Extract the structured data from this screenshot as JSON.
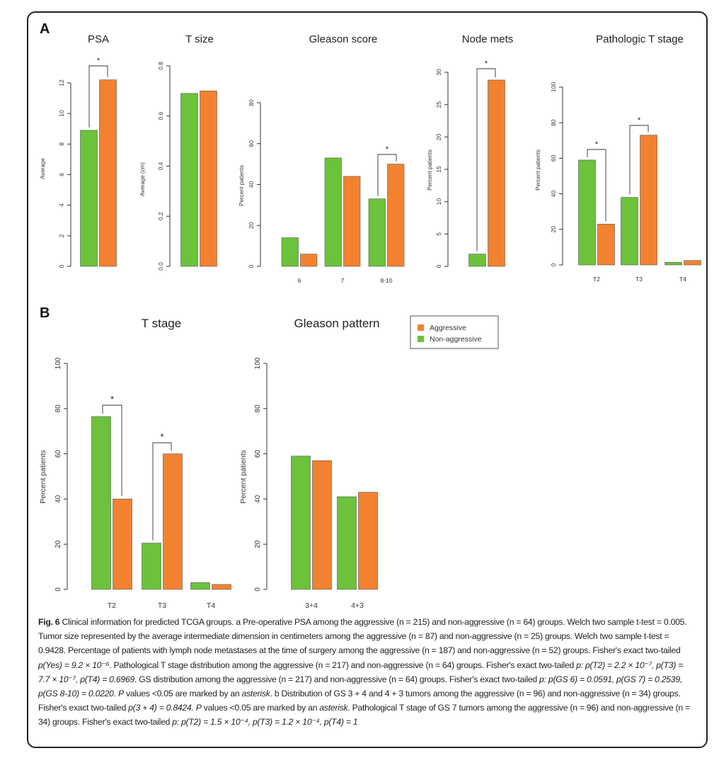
{
  "colors": {
    "aggressive": "#F28230",
    "non_aggressive": "#6CC23A",
    "axis": "#333333"
  },
  "panel_labels": [
    "A",
    "B"
  ],
  "chart_data": [
    {
      "id": "psa",
      "type": "bar",
      "title": "PSA",
      "xlabel": "",
      "ylabel": "Average",
      "ylim": [
        0,
        12
      ],
      "yticks": [
        0,
        2,
        4,
        6,
        8,
        10,
        12
      ],
      "categories": [
        ""
      ],
      "series": [
        {
          "name": "Non-aggressive",
          "values": [
            8.9
          ]
        },
        {
          "name": "Aggressive",
          "values": [
            12.2
          ]
        }
      ],
      "significance": [
        {
          "category": "",
          "label": "*"
        }
      ]
    },
    {
      "id": "tsize",
      "type": "bar",
      "title": "T size",
      "xlabel": "",
      "ylabel": "Average (cm)",
      "ylim": [
        0,
        0.8
      ],
      "yticks": [
        "0.0",
        "0.2",
        "0.4",
        "0.6",
        "0.8"
      ],
      "categories": [
        ""
      ],
      "series": [
        {
          "name": "Non-aggressive",
          "values": [
            0.69
          ]
        },
        {
          "name": "Aggressive",
          "values": [
            0.7
          ]
        }
      ],
      "significance": []
    },
    {
      "id": "gleason",
      "type": "bar",
      "title": "Gleason score",
      "xlabel": "",
      "ylabel": "Percent patients",
      "ylim": [
        0,
        80
      ],
      "yticks": [
        0,
        20,
        40,
        60,
        80
      ],
      "categories": [
        "6",
        "7",
        "8-10"
      ],
      "series": [
        {
          "name": "Non-aggressive",
          "values": [
            14,
            53,
            33
          ]
        },
        {
          "name": "Aggressive",
          "values": [
            6,
            44,
            50
          ]
        }
      ],
      "significance": [
        {
          "category": "8-10",
          "label": "*"
        }
      ]
    },
    {
      "id": "nodemets",
      "type": "bar",
      "title": "Node mets",
      "xlabel": "",
      "ylabel": "Percent patients",
      "ylim": [
        0,
        30
      ],
      "yticks": [
        0,
        5,
        10,
        15,
        20,
        25,
        30
      ],
      "categories": [
        ""
      ],
      "series": [
        {
          "name": "Non-aggressive",
          "values": [
            1.9
          ]
        },
        {
          "name": "Aggressive",
          "values": [
            28.8
          ]
        }
      ],
      "significance": [
        {
          "category": "",
          "label": "*"
        }
      ]
    },
    {
      "id": "pathT",
      "type": "bar",
      "title": "Pathologic T stage",
      "xlabel": "",
      "ylabel": "Percent patients",
      "ylim": [
        0,
        100
      ],
      "yticks": [
        0,
        20,
        40,
        60,
        80,
        100
      ],
      "categories": [
        "T2",
        "T3",
        "T4"
      ],
      "series": [
        {
          "name": "Non-aggressive",
          "values": [
            59,
            38,
            1.5
          ]
        },
        {
          "name": "Aggressive",
          "values": [
            23,
            73,
            2.5
          ]
        }
      ],
      "significance": [
        {
          "category": "T2",
          "label": "*"
        },
        {
          "category": "T3",
          "label": "*"
        }
      ]
    },
    {
      "id": "tstageB",
      "type": "bar",
      "title": "T stage",
      "xlabel": "",
      "ylabel": "Percent patients",
      "ylim": [
        0,
        100
      ],
      "yticks": [
        0,
        20,
        40,
        60,
        80,
        100
      ],
      "categories": [
        "T2",
        "T3",
        "T4"
      ],
      "series": [
        {
          "name": "Non-aggressive",
          "values": [
            76.5,
            20.5,
            3
          ]
        },
        {
          "name": "Aggressive",
          "values": [
            40,
            60,
            2.2
          ]
        }
      ],
      "significance": [
        {
          "category": "T2",
          "label": "*"
        },
        {
          "category": "T3",
          "label": "*"
        }
      ]
    },
    {
      "id": "gpatternB",
      "type": "bar",
      "title": "Gleason pattern",
      "xlabel": "",
      "ylabel": "Percent patients",
      "ylim": [
        0,
        100
      ],
      "yticks": [
        0,
        20,
        40,
        60,
        80,
        100
      ],
      "categories": [
        "3+4",
        "4+3"
      ],
      "series": [
        {
          "name": "Non-aggressive",
          "values": [
            59,
            41
          ]
        },
        {
          "name": "Aggressive",
          "values": [
            57,
            43
          ]
        }
      ],
      "significance": []
    }
  ],
  "legend": {
    "items": [
      {
        "label": "Aggressive",
        "series": "Aggressive"
      },
      {
        "label": "Non-aggressive",
        "series": "Non-aggressive"
      }
    ]
  },
  "caption": {
    "fig_label": "Fig. 6",
    "s1": " Clinical information for predicted TCGA groups. a Pre-operative PSA among the aggressive (n = 215) and non-aggressive (n = 64) groups. Welch two sample t-test = 0.005. Tumor size represented by the average intermediate dimension in centimeters among the aggressive (n = 87) and non-aggressive (n = 25) groups. Welch two sample t-test = 0.9428. Percentage of patients with lymph node metastases at the time of surgery among the aggressive (n = 187) and non-aggressive (n = 52) groups. Fisher's exact two-tailed ",
    "s2": "p(Yes) = 9.2 × 10⁻⁶",
    "s3": ". Pathological T stage distribution among the aggressive (n = 217) and non-aggressive (n = 64) groups. Fisher's exact two-tailed ",
    "s4": "p: p(T2) = 2.2 × 10⁻⁷, p(T3) = 7.7 × 10⁻⁷, p(T4) = 0.6969",
    "s5": ". GS distribution among the aggressive (n = 217) and non-aggressive (n = 64) groups. Fisher's exact two-tailed ",
    "s6": "p: p(GS 6) = 0.0591, p(GS 7) = 0.2539, p(GS 8-10) = 0.0220. P",
    "s7": " values <0.05 are marked by an ",
    "s8": "asterisk",
    "s9": ". b Distribution of GS 3 + 4 and 4 + 3 tumors among the aggressive (n = 96) and non-aggressive (n = 34) groups. Fisher's exact two-tailed ",
    "s10": "p(3 + 4) = 0.8424. P",
    "s11": " values <0.05 are marked by an ",
    "s12": "asterisk",
    "s13": ". Pathological T stage of GS 7 tumors among the aggressive (n = 96) and non-aggressive (n = 34) groups. Fisher's exact two-tailed ",
    "s14": "p: p(T2) = 1.5 × 10⁻⁴, p(T3) = 1.2 × 10⁻⁴, p(T4) = 1"
  }
}
